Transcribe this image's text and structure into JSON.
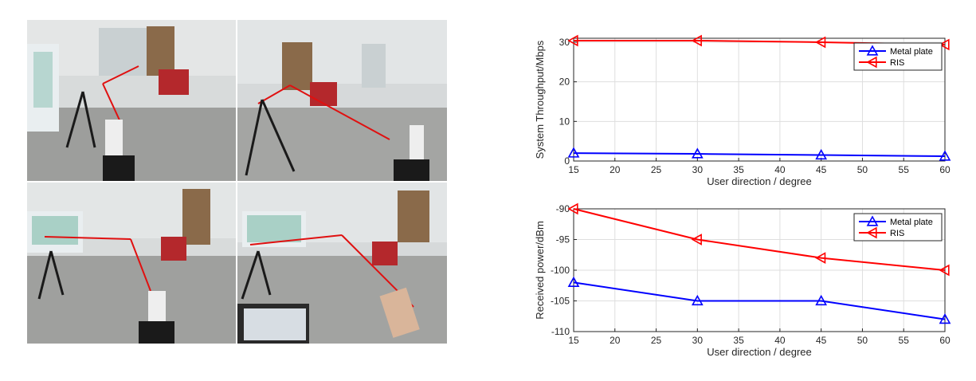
{
  "photos": {
    "panels": [
      {
        "name": "photo-top-left",
        "description_icon": "indoor-measurement-scene"
      },
      {
        "name": "photo-top-right",
        "description_icon": "indoor-measurement-scene"
      },
      {
        "name": "photo-bottom-left",
        "description_icon": "indoor-measurement-scene"
      },
      {
        "name": "photo-bottom-right",
        "description_icon": "indoor-measurement-scene"
      }
    ],
    "colors": {
      "floor": "#9a9a98",
      "wall": "#d9dcdc",
      "chair": "#b4282c",
      "path": "#e01010",
      "tripod": "#1a1a1a",
      "board": "#e9eef0"
    }
  },
  "chart_data": [
    {
      "type": "line",
      "xlabel": "User direction / degree",
      "ylabel": "System Throughput/Mbps",
      "x": [
        15,
        30,
        45,
        60
      ],
      "xticks": [
        "15",
        "20",
        "25",
        "30",
        "35",
        "40",
        "45",
        "50",
        "55",
        "60"
      ],
      "xlim": [
        15,
        60
      ],
      "ylim": [
        0,
        31
      ],
      "yticks": [
        "0",
        "10",
        "20",
        "30"
      ],
      "grid": true,
      "legend_position": "top-right",
      "series": [
        {
          "name": "Metal plate",
          "color": "#0000ff",
          "marker": "triangle-up",
          "values": [
            2.0,
            1.8,
            1.5,
            1.2
          ]
        },
        {
          "name": "RIS",
          "color": "#ff0000",
          "marker": "triangle-left",
          "values": [
            30.4,
            30.4,
            30.0,
            29.4
          ]
        }
      ]
    },
    {
      "type": "line",
      "xlabel": "User direction / degree",
      "ylabel": "Received power/dBm",
      "x": [
        15,
        30,
        45,
        60
      ],
      "xticks": [
        "15",
        "20",
        "25",
        "30",
        "35",
        "40",
        "45",
        "50",
        "55",
        "60"
      ],
      "xlim": [
        15,
        60
      ],
      "ylim": [
        -110,
        -90
      ],
      "yticks": [
        "-90",
        "-95",
        "-100",
        "-105",
        "-110"
      ],
      "grid": true,
      "legend_position": "top-right",
      "series": [
        {
          "name": "Metal plate",
          "color": "#0000ff",
          "marker": "triangle-up",
          "values": [
            -102,
            -105,
            -105,
            -108
          ]
        },
        {
          "name": "RIS",
          "color": "#ff0000",
          "marker": "triangle-left",
          "values": [
            -90,
            -95,
            -98,
            -100
          ]
        }
      ]
    }
  ]
}
